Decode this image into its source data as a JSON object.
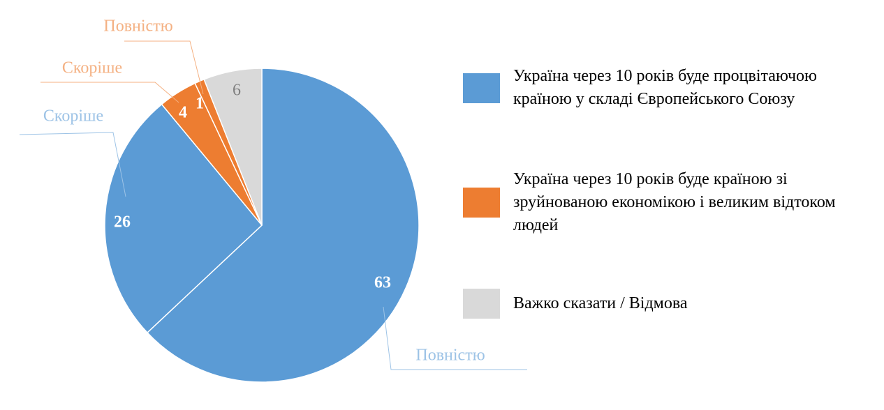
{
  "chart_data": {
    "type": "pie",
    "slices": [
      {
        "label": "Повністю",
        "value": 63,
        "color": "#5b9bd5"
      },
      {
        "label": "Скоріше",
        "value": 26,
        "color": "#5b9bd5"
      },
      {
        "label": "Скоріше",
        "value": 4,
        "color": "#ed7d31"
      },
      {
        "label": "Повністю",
        "value": 1,
        "color": "#ed7d31"
      },
      {
        "value": 6,
        "color": "#d9d9d9"
      }
    ],
    "legend": [
      {
        "name": "Україна через 10 років буде процвітаючою країною у складі Європейського Союзу",
        "color": "#5b9bd5"
      },
      {
        "name": "Україна через 10 років буде країною зі зруйнованою економікою і великим відтоком людей",
        "color": "#ed7d31"
      },
      {
        "name": "Важко сказати / Відмова",
        "color": "#d9d9d9"
      }
    ]
  }
}
